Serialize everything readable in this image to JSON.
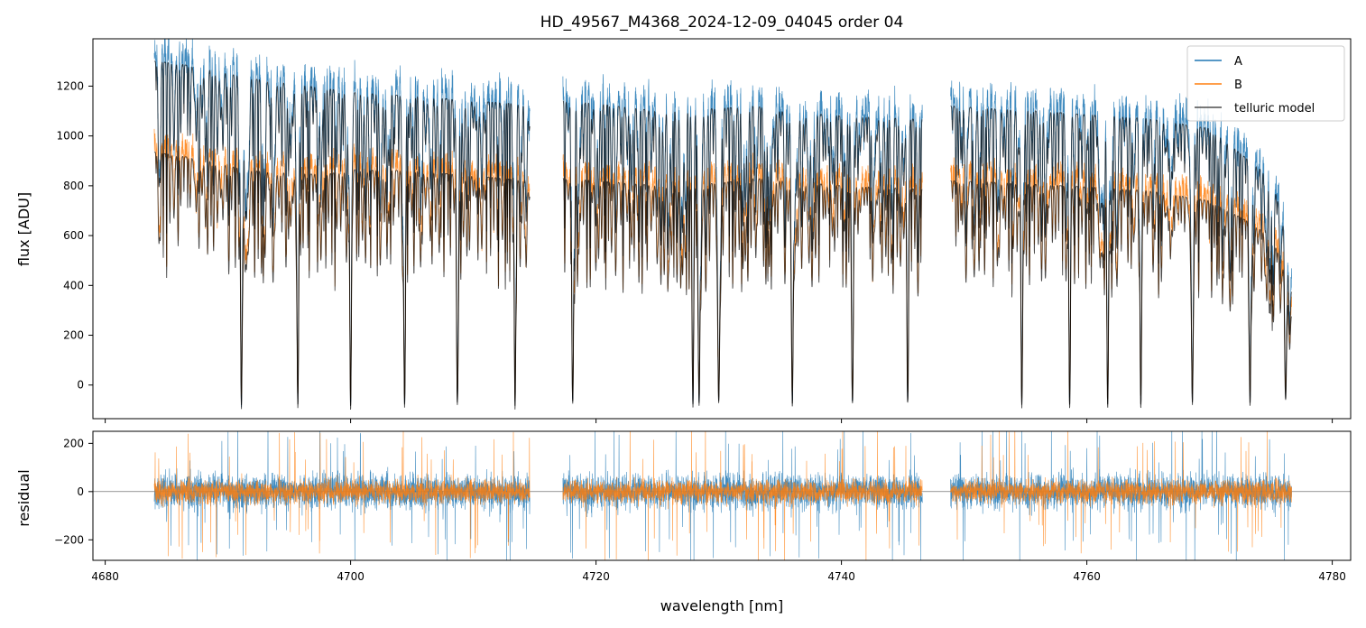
{
  "figure": {
    "title": "HD_49567_M4368_2024-12-09_04045  order 04"
  },
  "chart_data": [
    {
      "type": "line",
      "panel": "flux",
      "title": "HD_49567_M4368_2024-12-09_04045  order 04",
      "xlabel": "",
      "ylabel": "flux [ADU]",
      "xlim": [
        4679,
        4781.5
      ],
      "ylim": [
        -135,
        1390
      ],
      "x_ticks": [
        4680,
        4700,
        4720,
        4740,
        4760,
        4780
      ],
      "y_ticks": [
        0,
        200,
        400,
        600,
        800,
        1000,
        1200
      ],
      "y_tick_labels": [
        "0",
        "200",
        "400",
        "600",
        "800",
        "1000",
        "1200"
      ],
      "grid": false,
      "legend_position": "top-right",
      "segments": [
        [
          4684.0,
          4714.6
        ],
        [
          4717.3,
          4746.6
        ],
        [
          4748.9,
          4776.7
        ]
      ],
      "series": [
        {
          "name": "A",
          "color": "#1f77b4",
          "style": "noisy spectrum",
          "continuum": [
            [
              4684.0,
              1340
            ],
            [
              4686,
              1330
            ],
            [
              4688,
              1310
            ],
            [
              4690,
              1290
            ],
            [
              4692,
              1270
            ],
            [
              4695,
              1250
            ],
            [
              4698,
              1230
            ],
            [
              4700,
              1215
            ],
            [
              4705,
              1200
            ],
            [
              4710,
              1180
            ],
            [
              4714.6,
              1165
            ],
            [
              4717.3,
              1180
            ],
            [
              4720,
              1170
            ],
            [
              4725,
              1140
            ],
            [
              4730,
              1150
            ],
            [
              4733,
              1160
            ],
            [
              4735,
              1140
            ],
            [
              4740,
              1120
            ],
            [
              4745,
              1110
            ],
            [
              4746.6,
              1105
            ],
            [
              4748.9,
              1160
            ],
            [
              4752,
              1150
            ],
            [
              4756,
              1140
            ],
            [
              4760,
              1125
            ],
            [
              4765,
              1110
            ],
            [
              4770,
              1070
            ],
            [
              4773,
              950
            ],
            [
              4775,
              880
            ],
            [
              4776,
              700
            ],
            [
              4776.7,
              420
            ]
          ],
          "deep_lines": [
            4691.1,
            4695.7,
            4700.0,
            4704.4,
            4708.7,
            4713.4,
            4718.1,
            4727.9,
            4728.4,
            4730.0,
            4736.0,
            4740.9,
            4745.4,
            4754.7,
            4758.6,
            4761.7,
            4764.4,
            4768.6,
            4773.3,
            4776.2
          ]
        },
        {
          "name": "B",
          "color": "#ff7f0e",
          "style": "noisy spectrum",
          "continuum": [
            [
              4684.0,
              975
            ],
            [
              4686,
              960
            ],
            [
              4688,
              945
            ],
            [
              4690,
              920
            ],
            [
              4692,
              900
            ],
            [
              4695,
              890
            ],
            [
              4698,
              885
            ],
            [
              4700,
              905
            ],
            [
              4705,
              900
            ],
            [
              4710,
              880
            ],
            [
              4714.6,
              860
            ],
            [
              4717.3,
              870
            ],
            [
              4720,
              860
            ],
            [
              4725,
              840
            ],
            [
              4730,
              850
            ],
            [
              4733,
              870
            ],
            [
              4735,
              860
            ],
            [
              4740,
              840
            ],
            [
              4745,
              830
            ],
            [
              4746.6,
              825
            ],
            [
              4748.9,
              860
            ],
            [
              4752,
              855
            ],
            [
              4756,
              845
            ],
            [
              4760,
              835
            ],
            [
              4765,
              820
            ],
            [
              4770,
              780
            ],
            [
              4773,
              700
            ],
            [
              4775,
              640
            ],
            [
              4776,
              520
            ],
            [
              4776.7,
              320
            ]
          ],
          "deep_lines": [
            4691.1,
            4695.7,
            4700.0,
            4704.4,
            4708.7,
            4713.4,
            4718.1,
            4727.9,
            4728.4,
            4730.0,
            4736.0,
            4740.9,
            4745.4,
            4754.7,
            4758.6,
            4761.7,
            4764.4,
            4768.6,
            4773.3,
            4776.2
          ]
        },
        {
          "name": "telluric model",
          "color": "#000000",
          "style": "smooth overlay"
        }
      ]
    },
    {
      "type": "line",
      "panel": "residual",
      "xlabel": "wavelength [nm]",
      "ylabel": "residual",
      "xlim": [
        4679,
        4781.5
      ],
      "ylim": [
        -285,
        250
      ],
      "x_ticks": [
        4680,
        4700,
        4720,
        4740,
        4760,
        4780
      ],
      "x_tick_labels": [
        "4680",
        "4700",
        "4720",
        "4740",
        "4760",
        "4780"
      ],
      "y_ticks": [
        -200,
        0,
        200
      ],
      "y_tick_labels": [
        "−200",
        "0",
        "200"
      ],
      "zero_line": true,
      "grid": false,
      "segments": [
        [
          4684.0,
          4714.6
        ],
        [
          4717.3,
          4746.6
        ],
        [
          4748.9,
          4776.7
        ]
      ],
      "series": [
        {
          "name": "A",
          "color": "#1f77b4",
          "typical_amplitude": 70,
          "peak_amplitude": 270
        },
        {
          "name": "B",
          "color": "#ff7f0e",
          "typical_amplitude": 45,
          "peak_amplitude": 250
        }
      ]
    }
  ]
}
